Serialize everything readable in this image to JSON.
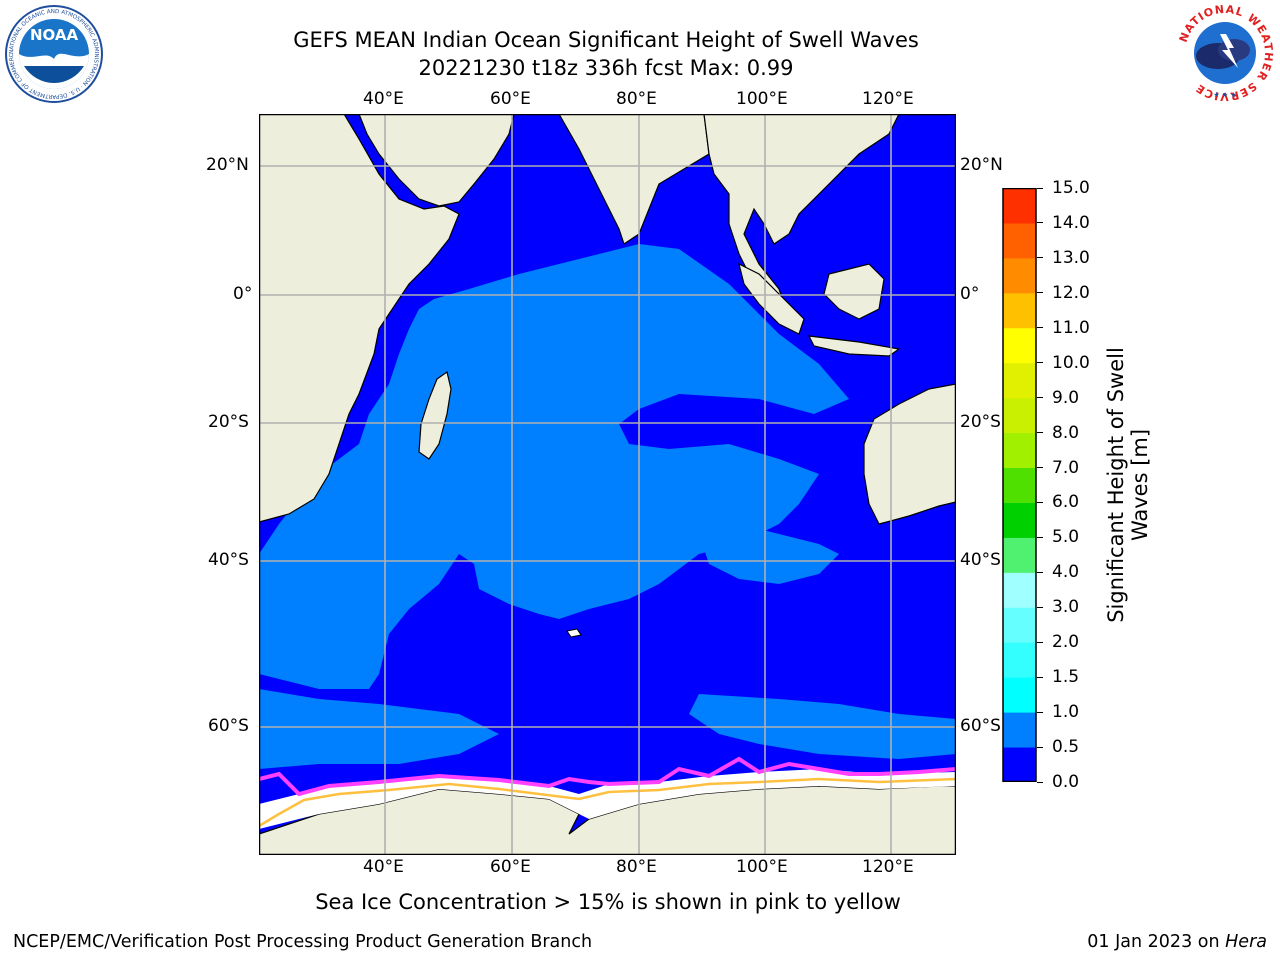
{
  "title": {
    "line1": "GEFS MEAN Indian Ocean Significant Height of Swell Waves",
    "line2": "20221230 t18z 336h fcst   Max: 0.99"
  },
  "map": {
    "lon_ticks": [
      "40°E",
      "60°E",
      "80°E",
      "100°E",
      "120°E"
    ],
    "lat_ticks": [
      "20°N",
      "0°",
      "20°S",
      "40°S",
      "60°S"
    ],
    "colors": {
      "land": "#eeeedc",
      "ocean_low": "#0000ff",
      "ocean_mid": "#0080ff",
      "ice": "#ffffff",
      "ice_edge_pink": "#ff40ff",
      "ice_edge_yellow": "#ffc040",
      "grid": "#b0b0b0"
    }
  },
  "colorbar": {
    "label_line1": "Significant Height of Swell",
    "label_line2": "Waves [m]",
    "ticks": [
      "0.0",
      "0.5",
      "1.0",
      "1.5",
      "2.0",
      "3.0",
      "4.0",
      "5.0",
      "6.0",
      "7.0",
      "8.0",
      "9.0",
      "10.0",
      "11.0",
      "12.0",
      "13.0",
      "14.0",
      "15.0"
    ],
    "colors": [
      "#0000ff",
      "#0080ff",
      "#00ffff",
      "#33ffff",
      "#66ffff",
      "#a0ffff",
      "#50f070",
      "#00d000",
      "#50e000",
      "#a0f000",
      "#c8f000",
      "#e0f000",
      "#ffff00",
      "#ffc000",
      "#ff8c00",
      "#ff6000",
      "#ff3000",
      "#ff0000"
    ]
  },
  "caption": "Sea Ice Concentration > 15% is shown in pink to yellow",
  "footer": {
    "left": "NCEP/EMC/Verification Post Processing Product Generation Branch",
    "right_prefix": "01 Jan 2023 on ",
    "right_host": "Hera"
  },
  "logos": {
    "noaa": "NOAA",
    "noaa_ring": "NATIONAL OCEANIC AND ATMOSPHERIC ADMINISTRATION · U.S. DEPARTMENT OF COMMERCE",
    "nws_ring": "NATIONAL WEATHER SERVICE"
  }
}
